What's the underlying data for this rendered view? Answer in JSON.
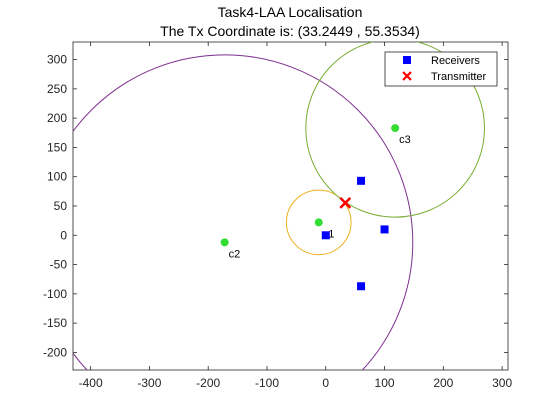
{
  "chart_data": {
    "type": "scatter",
    "title": "Task4-LAA Localisation",
    "subtitle": "The Tx Coordinate is: (33.2449 , 55.3534)",
    "xlabel": "",
    "ylabel": "",
    "xlim": [
      -430,
      310
    ],
    "ylim": [
      -230,
      330
    ],
    "xticks": [
      -400,
      -300,
      -200,
      -100,
      0,
      100,
      200,
      300
    ],
    "yticks": [
      -200,
      -150,
      -100,
      -50,
      0,
      50,
      100,
      150,
      200,
      250,
      300
    ],
    "grid": false,
    "legend_position": "top-right",
    "colors": {
      "receivers": "#0000ff",
      "transmitter": "#ff0000",
      "centers": "#33dd33",
      "circle_c1": "#edb120",
      "circle_c2": "#7e2f8e",
      "circle_c3": "#77ac30"
    },
    "receivers": {
      "name": "Receivers",
      "points": [
        [
          0,
          0
        ],
        [
          60,
          93
        ],
        [
          100,
          10
        ],
        [
          60,
          -87
        ]
      ]
    },
    "transmitter": {
      "name": "Transmitter",
      "x": 33.2449,
      "y": 55.3534
    },
    "centers": [
      {
        "label": "c1",
        "x": -12,
        "y": 22
      },
      {
        "label": "c2",
        "x": -172,
        "y": -12
      },
      {
        "label": "c3",
        "x": 118,
        "y": 183
      }
    ],
    "circles": [
      {
        "label": "c1",
        "cx": -12,
        "cy": 22,
        "r": 55
      },
      {
        "label": "c2",
        "cx": -172,
        "cy": -12,
        "r": 320
      },
      {
        "label": "c3",
        "cx": 118,
        "cy": 183,
        "r": 152
      }
    ]
  }
}
